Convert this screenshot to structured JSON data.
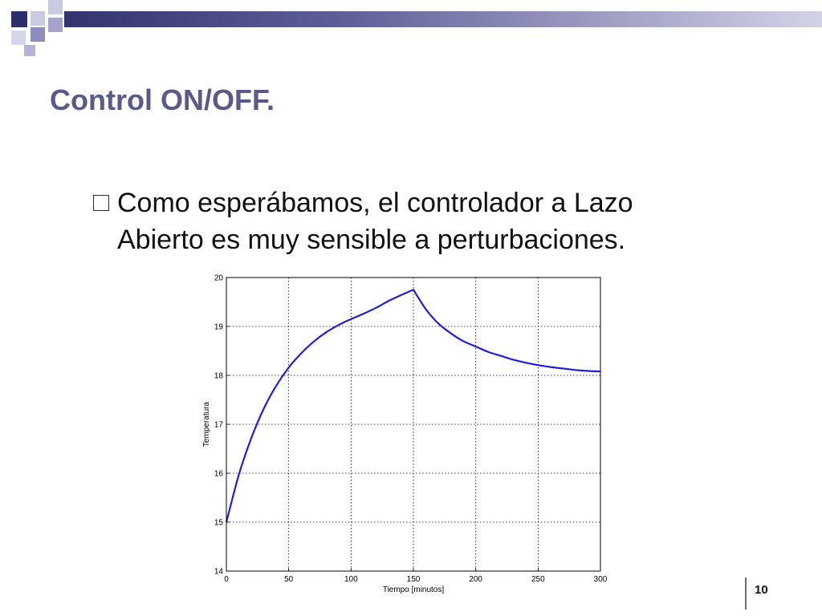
{
  "slide": {
    "title": "Control ON/OFF.",
    "bullet_line1": "Como esperábamos, el controlador a Lazo",
    "bullet_line2": "Abierto es muy sensible a perturbaciones.",
    "page_number": "10"
  },
  "colors": {
    "title": "#5a5a8a",
    "header_dark": "#33336e",
    "header_light": "#d2d2e6",
    "series": "#1f1fd6"
  },
  "chart_data": {
    "type": "line",
    "title": "",
    "xlabel": "Tiempo [minutos]",
    "ylabel": "Temperatura",
    "xlim": [
      0,
      300
    ],
    "ylim": [
      14,
      20
    ],
    "xticks": [
      0,
      50,
      100,
      150,
      200,
      250,
      300
    ],
    "yticks": [
      14,
      15,
      16,
      17,
      18,
      19,
      20
    ],
    "grid": true,
    "series": [
      {
        "x": [
          0,
          10,
          20,
          30,
          40,
          50,
          60,
          70,
          80,
          90,
          100,
          110,
          120,
          130,
          140,
          150,
          160,
          170,
          180,
          190,
          200,
          210,
          220,
          230,
          240,
          250,
          260,
          270,
          280,
          290,
          300
        ],
        "y": [
          15.0,
          15.97,
          16.72,
          17.32,
          17.79,
          18.16,
          18.45,
          18.69,
          18.88,
          19.03,
          19.15,
          19.26,
          19.38,
          19.52,
          19.64,
          19.75,
          19.35,
          19.06,
          18.86,
          18.7,
          18.59,
          18.48,
          18.4,
          18.32,
          18.26,
          18.21,
          18.17,
          18.14,
          18.11,
          18.09,
          18.08
        ]
      }
    ]
  }
}
